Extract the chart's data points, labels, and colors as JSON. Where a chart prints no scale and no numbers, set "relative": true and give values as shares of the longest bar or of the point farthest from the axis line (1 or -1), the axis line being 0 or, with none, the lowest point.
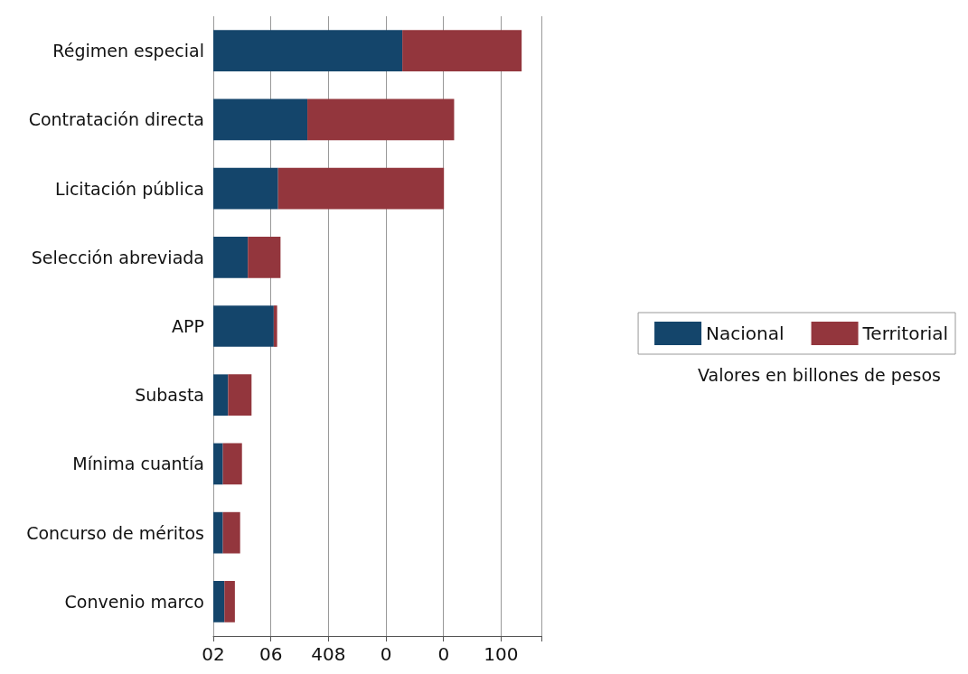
{
  "chart_data": {
    "type": "bar",
    "orientation": "horizontal",
    "stacked": true,
    "relative": true,
    "categories": [
      "Régimen especial",
      "Contratación directa",
      "Licitación pública",
      "Selección abreviada",
      "APP",
      "Subasta",
      "Mínima cuantía",
      "Concurso de méritos",
      "Convenio marco"
    ],
    "series": [
      {
        "name": "Nacional",
        "color": "#14456b",
        "values": [
          0.613,
          0.305,
          0.21,
          0.112,
          0.196,
          0.048,
          0.031,
          0.031,
          0.036
        ]
      },
      {
        "name": "Territorial",
        "color": "#93363d",
        "values": [
          0.387,
          0.476,
          0.538,
          0.106,
          0.011,
          0.076,
          0.062,
          0.056,
          0.034
        ]
      }
    ],
    "grid": "x",
    "legend": "right",
    "annotations": [
      "Valores en billones de pesos",
      "02",
      "06",
      "408",
      "0",
      "0",
      "100"
    ]
  }
}
